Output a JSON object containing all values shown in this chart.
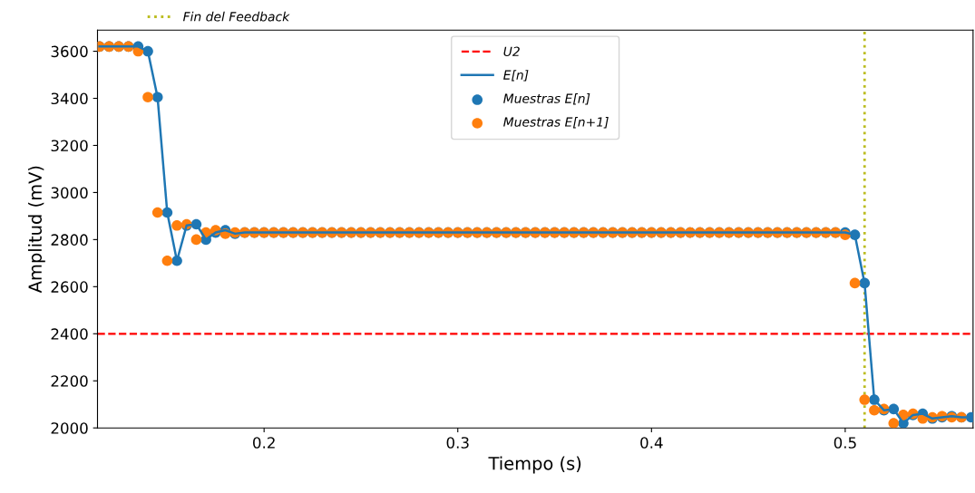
{
  "chart_data": {
    "type": "line",
    "xlabel": "Tiempo (s)",
    "ylabel": "Amplitud (mV)",
    "x": [
      0.115,
      0.12,
      0.125,
      0.13,
      0.135,
      0.14,
      0.145,
      0.15,
      0.155,
      0.16,
      0.165,
      0.17,
      0.175,
      0.18,
      0.185,
      0.19,
      0.195,
      0.2,
      0.205,
      0.21,
      0.215,
      0.22,
      0.225,
      0.23,
      0.235,
      0.24,
      0.245,
      0.25,
      0.255,
      0.26,
      0.265,
      0.27,
      0.275,
      0.28,
      0.285,
      0.29,
      0.295,
      0.3,
      0.305,
      0.31,
      0.315,
      0.32,
      0.325,
      0.33,
      0.335,
      0.34,
      0.345,
      0.35,
      0.355,
      0.36,
      0.365,
      0.37,
      0.375,
      0.38,
      0.385,
      0.39,
      0.395,
      0.4,
      0.405,
      0.41,
      0.415,
      0.42,
      0.425,
      0.43,
      0.435,
      0.44,
      0.445,
      0.45,
      0.455,
      0.46,
      0.465,
      0.47,
      0.475,
      0.48,
      0.485,
      0.49,
      0.495,
      0.5,
      0.505,
      0.51,
      0.515,
      0.52,
      0.525,
      0.53,
      0.535,
      0.54,
      0.545,
      0.55,
      0.555,
      0.56,
      0.565
    ],
    "series": [
      {
        "name": "E[n]",
        "color": "#1f77b4",
        "values": [
          3620,
          3620,
          3620,
          3620,
          3620,
          3600,
          3405,
          2915,
          2710,
          2860,
          2865,
          2800,
          2830,
          2840,
          2825,
          2830,
          2830,
          2830,
          2830,
          2830,
          2830,
          2830,
          2830,
          2830,
          2830,
          2830,
          2830,
          2830,
          2830,
          2830,
          2830,
          2830,
          2830,
          2830,
          2830,
          2830,
          2830,
          2830,
          2830,
          2830,
          2830,
          2830,
          2830,
          2830,
          2830,
          2830,
          2830,
          2830,
          2830,
          2830,
          2830,
          2830,
          2830,
          2830,
          2830,
          2830,
          2830,
          2830,
          2830,
          2830,
          2830,
          2830,
          2830,
          2830,
          2830,
          2830,
          2830,
          2830,
          2830,
          2830,
          2830,
          2830,
          2830,
          2830,
          2830,
          2830,
          2830,
          2830,
          2820,
          2615,
          2120,
          2075,
          2080,
          2020,
          2055,
          2060,
          2040,
          2045,
          2050,
          2045,
          2045
        ]
      },
      {
        "name": "Muestras E[n]",
        "type": "scatter",
        "marker": "circle",
        "color": "#1f77b4",
        "values": [
          3620,
          3620,
          3620,
          3620,
          3620,
          3600,
          3405,
          2915,
          2710,
          2860,
          2865,
          2800,
          2830,
          2840,
          2825,
          2830,
          2830,
          2830,
          2830,
          2830,
          2830,
          2830,
          2830,
          2830,
          2830,
          2830,
          2830,
          2830,
          2830,
          2830,
          2830,
          2830,
          2830,
          2830,
          2830,
          2830,
          2830,
          2830,
          2830,
          2830,
          2830,
          2830,
          2830,
          2830,
          2830,
          2830,
          2830,
          2830,
          2830,
          2830,
          2830,
          2830,
          2830,
          2830,
          2830,
          2830,
          2830,
          2830,
          2830,
          2830,
          2830,
          2830,
          2830,
          2830,
          2830,
          2830,
          2830,
          2830,
          2830,
          2830,
          2830,
          2830,
          2830,
          2830,
          2830,
          2830,
          2830,
          2830,
          2820,
          2615,
          2120,
          2075,
          2080,
          2020,
          2055,
          2060,
          2040,
          2045,
          2050,
          2045,
          2045
        ]
      },
      {
        "name": "Muestras E[n+1]",
        "type": "scatter",
        "marker": "circle",
        "color": "#ff7f0e",
        "values": [
          3620,
          3620,
          3620,
          3620,
          3600,
          3405,
          2915,
          2710,
          2860,
          2865,
          2800,
          2830,
          2840,
          2825,
          2830,
          2830,
          2830,
          2830,
          2830,
          2830,
          2830,
          2830,
          2830,
          2830,
          2830,
          2830,
          2830,
          2830,
          2830,
          2830,
          2830,
          2830,
          2830,
          2830,
          2830,
          2830,
          2830,
          2830,
          2830,
          2830,
          2830,
          2830,
          2830,
          2830,
          2830,
          2830,
          2830,
          2830,
          2830,
          2830,
          2830,
          2830,
          2830,
          2830,
          2830,
          2830,
          2830,
          2830,
          2830,
          2830,
          2830,
          2830,
          2830,
          2830,
          2830,
          2830,
          2830,
          2830,
          2830,
          2830,
          2830,
          2830,
          2830,
          2830,
          2830,
          2830,
          2830,
          2820,
          2615,
          2120,
          2075,
          2080,
          2020,
          2055,
          2060,
          2040,
          2045,
          2050,
          2045,
          2045,
          null
        ]
      }
    ],
    "ref_lines": [
      {
        "axis": "y",
        "value": 2400,
        "label": "U2",
        "color": "#ff0000",
        "line_style": "dashed"
      },
      {
        "axis": "x",
        "value": 0.51,
        "label": "Fin del Feedback",
        "color": "#bcbd22",
        "line_style": "dotted"
      }
    ],
    "xlim": [
      0.114,
      0.566
    ],
    "xticks": [
      0.2,
      0.3,
      0.4,
      0.5
    ],
    "ylim": [
      2000,
      3690
    ],
    "yticks": [
      2000,
      2200,
      2400,
      2600,
      2800,
      3000,
      3200,
      3400,
      3600
    ],
    "grid": false,
    "legend": "top"
  }
}
